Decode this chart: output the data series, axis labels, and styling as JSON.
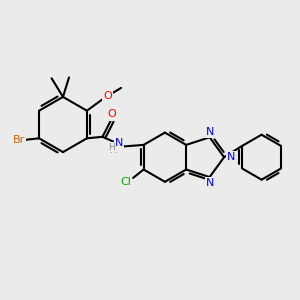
{
  "bg_color": "#ebebeb",
  "bond_color": "#000000",
  "bond_width": 1.5,
  "atom_colors": {
    "N": "#0000ff",
    "O": "#ff0000",
    "Br": "#cc6600",
    "Cl": "#00aa00",
    "H": "#888888",
    "C": "#000000"
  },
  "font_size": 8.0,
  "fig_w": 3.0,
  "fig_h": 3.0,
  "dpi": 100
}
